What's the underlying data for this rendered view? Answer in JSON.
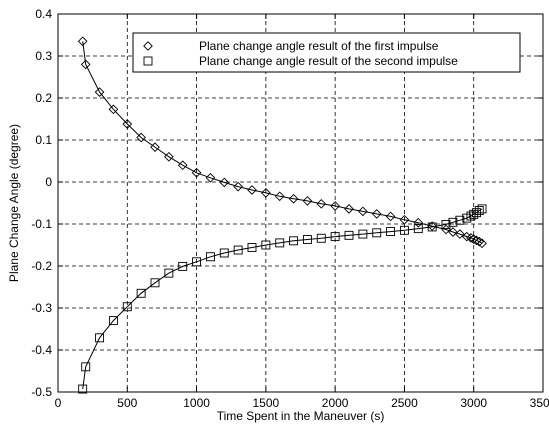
{
  "chart_data": {
    "type": "line",
    "title": "",
    "xlabel": "Time Spent in the Maneuver (s)",
    "ylabel": "Plane Change Angle (degree)",
    "xlim": [
      0,
      3500
    ],
    "ylim": [
      -0.5,
      0.4
    ],
    "xticks": [
      0,
      500,
      1000,
      1500,
      2000,
      2500,
      3000,
      3500
    ],
    "yticks": [
      -0.5,
      -0.4,
      -0.3,
      -0.2,
      -0.1,
      0,
      0.1,
      0.2,
      0.3,
      0.4
    ],
    "xtick_labels": [
      "0",
      "500",
      "1000",
      "1500",
      "2000",
      "2500",
      "3000",
      "3500"
    ],
    "ytick_labels": [
      "-0.5",
      "-0.4",
      "-0.3",
      "-0.2",
      "-0.1",
      "0",
      "0.1",
      "0.2",
      "0.3",
      "0.4"
    ],
    "grid": true,
    "grid_style": "dashed",
    "legend_position": "top-right",
    "series": [
      {
        "name": "Plane change angle result of the first impulse",
        "marker": "diamond",
        "color": "#000000",
        "x": [
          178,
          200,
          300,
          400,
          500,
          600,
          700,
          800,
          900,
          1000,
          1100,
          1200,
          1300,
          1400,
          1500,
          1600,
          1700,
          1800,
          1900,
          2000,
          2100,
          2200,
          2300,
          2400,
          2500,
          2600,
          2700,
          2800,
          2850,
          2900,
          2950,
          2980,
          3000,
          3020,
          3040,
          3060
        ],
        "y": [
          0.335,
          0.28,
          0.214,
          0.173,
          0.138,
          0.106,
          0.083,
          0.06,
          0.04,
          0.022,
          0.01,
          -0.001,
          -0.011,
          -0.019,
          -0.026,
          -0.034,
          -0.04,
          -0.045,
          -0.052,
          -0.057,
          -0.064,
          -0.07,
          -0.076,
          -0.082,
          -0.09,
          -0.097,
          -0.105,
          -0.113,
          -0.119,
          -0.124,
          -0.13,
          -0.133,
          -0.136,
          -0.139,
          -0.142,
          -0.146
        ]
      },
      {
        "name": "Plane change angle result of the second impulse",
        "marker": "square",
        "color": "#000000",
        "x": [
          178,
          200,
          300,
          400,
          500,
          600,
          700,
          800,
          900,
          1000,
          1100,
          1200,
          1300,
          1400,
          1500,
          1600,
          1700,
          1800,
          1900,
          2000,
          2100,
          2200,
          2300,
          2400,
          2500,
          2600,
          2700,
          2800,
          2850,
          2900,
          2950,
          2980,
          3000,
          3020,
          3040,
          3060
        ],
        "y": [
          -0.493,
          -0.44,
          -0.371,
          -0.33,
          -0.297,
          -0.265,
          -0.24,
          -0.217,
          -0.201,
          -0.19,
          -0.178,
          -0.169,
          -0.162,
          -0.156,
          -0.15,
          -0.145,
          -0.14,
          -0.137,
          -0.134,
          -0.13,
          -0.127,
          -0.124,
          -0.121,
          -0.118,
          -0.115,
          -0.111,
          -0.107,
          -0.101,
          -0.096,
          -0.091,
          -0.086,
          -0.081,
          -0.077,
          -0.073,
          -0.068,
          -0.064
        ]
      }
    ]
  }
}
